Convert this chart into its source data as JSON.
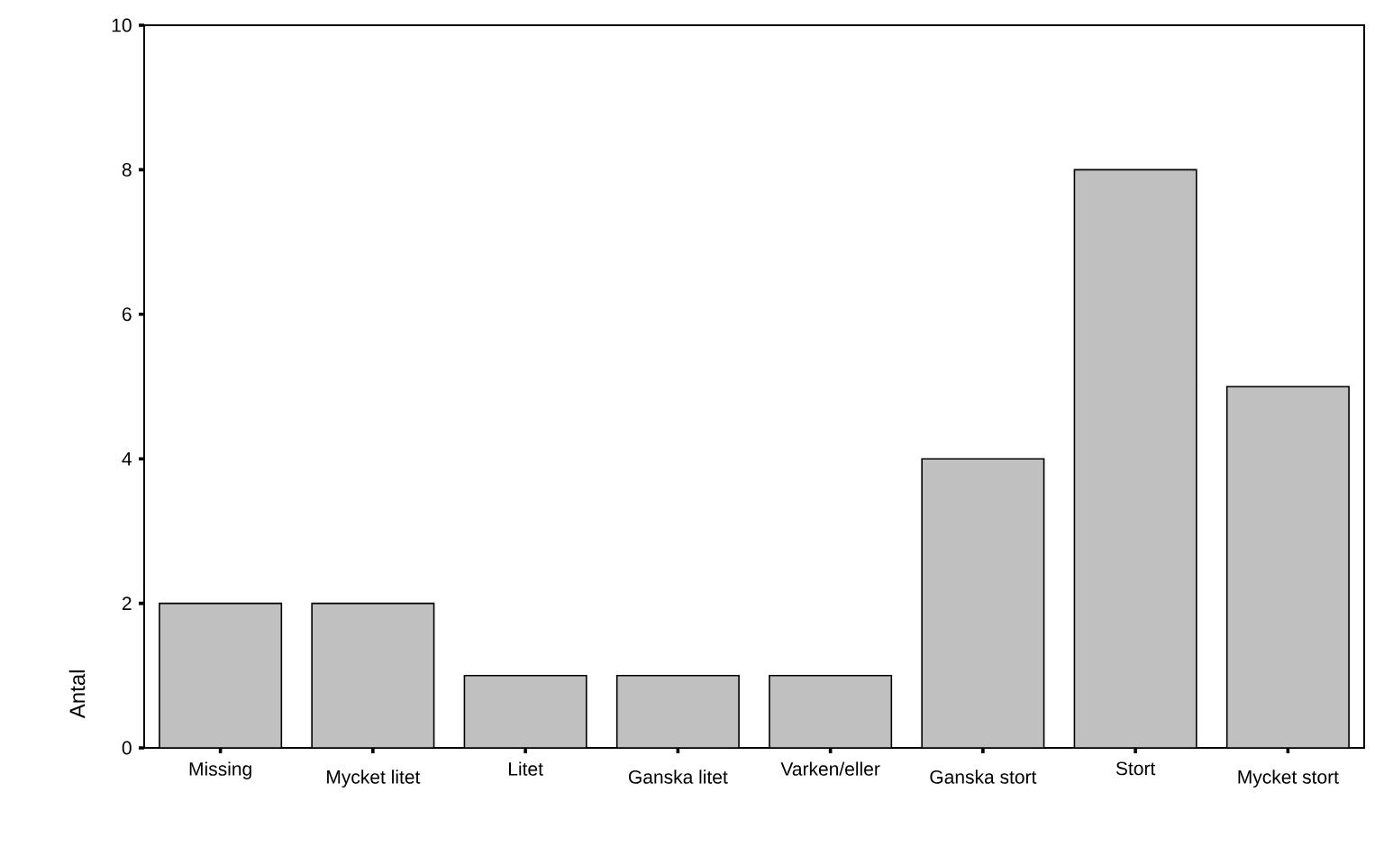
{
  "chart_data": {
    "type": "bar",
    "ylabel": "Antal",
    "categories": [
      "Missing",
      "Mycket litet",
      "Litet",
      "Ganska litet",
      "Varken/eller",
      "Ganska stort",
      "Stort",
      "Mycket stort"
    ],
    "values": [
      2,
      2,
      1,
      1,
      1,
      4,
      8,
      5
    ],
    "color": "#c0c0c0",
    "ylim": [
      0,
      10
    ],
    "yticks": [
      0,
      2,
      4,
      6,
      8,
      10
    ]
  }
}
